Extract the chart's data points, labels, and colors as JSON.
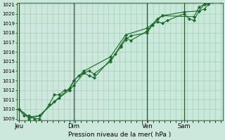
{
  "xlabel": "Pression niveau de la mer( hPa )",
  "bg_color": "#cce8dc",
  "grid_color": "#99ccaa",
  "line_color": "#1a6b2a",
  "marker_color": "#1a6b2a",
  "ymin": 1009,
  "ymax": 1021,
  "yticks": [
    1009,
    1010,
    1011,
    1012,
    1013,
    1014,
    1015,
    1016,
    1017,
    1018,
    1019,
    1020,
    1021
  ],
  "xtick_labels": [
    "Jeu",
    "Dim",
    "Ven",
    "Sam"
  ],
  "xtick_positions": [
    0.0,
    0.272,
    0.636,
    0.818
  ],
  "vline_positions": [
    0.0,
    0.272,
    0.636,
    0.818
  ],
  "xmax": 1.0,
  "series1_x": [
    0.0,
    0.025,
    0.05,
    0.075,
    0.1,
    0.15,
    0.175,
    0.2,
    0.225,
    0.25,
    0.272,
    0.297,
    0.322,
    0.347,
    0.372,
    0.454,
    0.479,
    0.504,
    0.529,
    0.554,
    0.636,
    0.661,
    0.686,
    0.711,
    0.736,
    0.818,
    0.843,
    0.868,
    0.893,
    0.92,
    0.94,
    0.96,
    0.98,
    1.0
  ],
  "series1_y": [
    1010.0,
    1009.3,
    1009.3,
    1009.0,
    1009.0,
    1010.5,
    1011.5,
    1011.5,
    1012.0,
    1012.0,
    1013.0,
    1013.5,
    1013.8,
    1013.5,
    1013.3,
    1015.2,
    1015.8,
    1016.5,
    1017.3,
    1017.7,
    1018.0,
    1018.8,
    1019.2,
    1019.0,
    1019.3,
    1020.0,
    1019.5,
    1019.3,
    1020.3,
    1020.5,
    1021.0,
    1021.2,
    1021.3,
    1021.2
  ],
  "series2_x": [
    0.0,
    0.05,
    0.1,
    0.2,
    0.25,
    0.272,
    0.322,
    0.347,
    0.372,
    0.454,
    0.504,
    0.529,
    0.554,
    0.636,
    0.686,
    0.711,
    0.868,
    0.893,
    0.92,
    0.94,
    0.98,
    1.0
  ],
  "series2_y": [
    1010.0,
    1009.2,
    1009.3,
    1011.2,
    1012.0,
    1012.5,
    1013.8,
    1014.0,
    1013.7,
    1015.0,
    1016.7,
    1017.5,
    1017.2,
    1018.2,
    1019.5,
    1019.8,
    1019.7,
    1020.7,
    1021.0,
    1021.2,
    1021.5,
    1021.3
  ],
  "series3_x": [
    0.0,
    0.05,
    0.1,
    0.175,
    0.25,
    0.272,
    0.322,
    0.454,
    0.529,
    0.636,
    0.711,
    0.818,
    0.893,
    0.92,
    0.98,
    1.0
  ],
  "series3_y": [
    1010.0,
    1009.0,
    1009.3,
    1010.8,
    1012.2,
    1013.0,
    1014.0,
    1015.5,
    1017.8,
    1018.5,
    1019.8,
    1020.2,
    1020.3,
    1021.0,
    1021.5,
    1021.3
  ]
}
